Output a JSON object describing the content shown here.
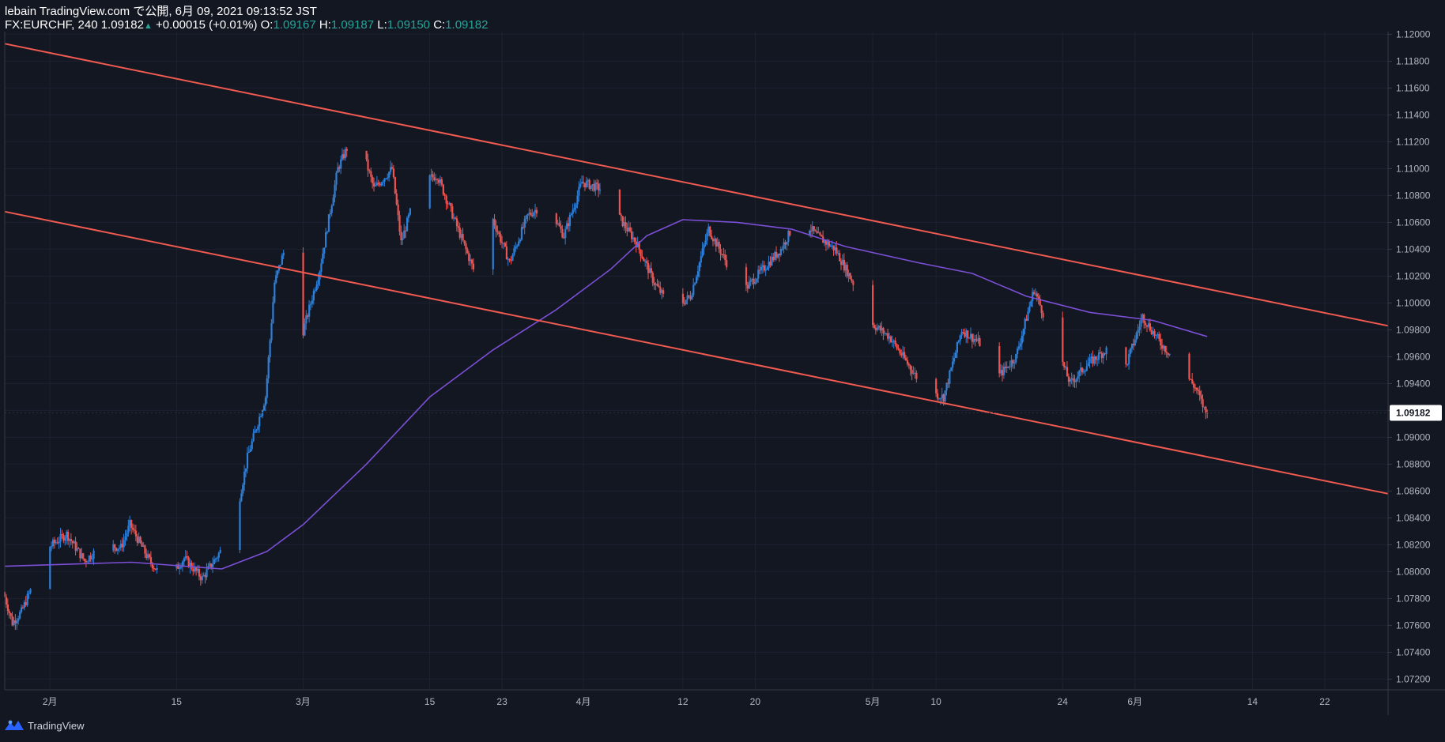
{
  "header": {
    "line1": "lebain TradingView.com で公開, 6月 09, 2021 09:13:52 JST",
    "symbol": "FX:EURCHF, 240",
    "last": "1.09182",
    "arrow": "▲",
    "change": "+0.00015 (+0.01%)",
    "o_label": "O:",
    "o_value": "1.09167",
    "h_label": "H:",
    "h_value": "1.09187",
    "l_label": "L:",
    "l_value": "1.09150",
    "c_label": "C:",
    "c_value": "1.09182"
  },
  "footer": {
    "brand": "TradingView",
    "logo_icon": "tradingview-logo-icon"
  },
  "colors": {
    "background": "#131722",
    "up": "#2f7fd6",
    "down": "#ef5350",
    "channel": "#f05a50",
    "ma": "#7b4fd6",
    "axis_text": "#b2b5be",
    "grid": "#1e2230",
    "last_price_label_bg": "#ffffff",
    "last_price_label_text": "#131722"
  },
  "chart_data": {
    "type": "candlestick",
    "title": "",
    "symbol": "FX:EURCHF",
    "interval": "240",
    "grid": true,
    "x_tick_labels": [
      {
        "label": "2月",
        "date": "2021-02-01"
      },
      {
        "label": "15",
        "date": "2021-02-15"
      },
      {
        "label": "3月",
        "date": "2021-03-01"
      },
      {
        "label": "15",
        "date": "2021-03-15"
      },
      {
        "label": "23",
        "date": "2021-03-23"
      },
      {
        "label": "4月",
        "date": "2021-04-01"
      },
      {
        "label": "12",
        "date": "2021-04-12"
      },
      {
        "label": "20",
        "date": "2021-04-20"
      },
      {
        "label": "5月",
        "date": "2021-05-03"
      },
      {
        "label": "10",
        "date": "2021-05-10"
      },
      {
        "label": "24",
        "date": "2021-05-24"
      },
      {
        "label": "6月",
        "date": "2021-06-01"
      },
      {
        "label": "14",
        "date": "2021-06-14"
      },
      {
        "label": "22",
        "date": "2021-06-22"
      }
    ],
    "y_tick_labels": [
      "1.12000",
      "1.11800",
      "1.11600",
      "1.11400",
      "1.11200",
      "1.11000",
      "1.10800",
      "1.10600",
      "1.10400",
      "1.10200",
      "1.10000",
      "1.09800",
      "1.09600",
      "1.09400",
      "1.09200",
      "1.09000",
      "1.08800",
      "1.08600",
      "1.08400",
      "1.08200",
      "1.08000",
      "1.07800",
      "1.07600",
      "1.07400",
      "1.07200"
    ],
    "ylim": [
      1.0712,
      1.1202
    ],
    "xlim": [
      "2021-01-27",
      "2021-06-29"
    ],
    "last_price": "1.09182",
    "price_path": [
      [
        "2021-01-27",
        1.0785
      ],
      [
        "2021-01-28",
        1.0762
      ],
      [
        "2021-01-29",
        1.077
      ],
      [
        "2021-02-01",
        1.0818
      ],
      [
        "2021-02-03",
        1.0828
      ],
      [
        "2021-02-05",
        1.0808
      ],
      [
        "2021-02-07",
        1.082
      ],
      [
        "2021-02-09",
        1.0818
      ],
      [
        "2021-02-10",
        1.0835
      ],
      [
        "2021-02-12",
        1.081
      ],
      [
        "2021-02-14",
        1.0792
      ],
      [
        "2021-02-16",
        1.081
      ],
      [
        "2021-02-18",
        1.0795
      ],
      [
        "2021-02-20",
        1.0815
      ],
      [
        "2021-02-22",
        1.085
      ],
      [
        "2021-02-23",
        1.0885
      ],
      [
        "2021-02-25",
        1.093
      ],
      [
        "2021-02-26",
        1.1015
      ],
      [
        "2021-02-28",
        1.106
      ],
      [
        "2021-03-01",
        1.0975
      ],
      [
        "2021-03-03",
        1.1025
      ],
      [
        "2021-03-05",
        1.11
      ],
      [
        "2021-03-07",
        1.113
      ],
      [
        "2021-03-09",
        1.1085
      ],
      [
        "2021-03-11",
        1.11
      ],
      [
        "2021-03-12",
        1.1045
      ],
      [
        "2021-03-14",
        1.109
      ],
      [
        "2021-03-16",
        1.1095
      ],
      [
        "2021-03-18",
        1.106
      ],
      [
        "2021-03-20",
        1.1025
      ],
      [
        "2021-03-22",
        1.1065
      ],
      [
        "2021-03-24",
        1.103
      ],
      [
        "2021-03-26",
        1.1065
      ],
      [
        "2021-03-28",
        1.1075
      ],
      [
        "2021-03-30",
        1.105
      ],
      [
        "2021-04-01",
        1.109
      ],
      [
        "2021-04-03",
        1.1085
      ],
      [
        "2021-04-05",
        1.1065
      ],
      [
        "2021-04-07",
        1.1045
      ],
      [
        "2021-04-09",
        1.1015
      ],
      [
        "2021-04-11",
        1.0995
      ],
      [
        "2021-04-13",
        1.1005
      ],
      [
        "2021-04-15",
        1.1055
      ],
      [
        "2021-04-17",
        1.103
      ],
      [
        "2021-04-19",
        1.101
      ],
      [
        "2021-04-21",
        1.1025
      ],
      [
        "2021-04-23",
        1.104
      ],
      [
        "2021-04-25",
        1.1065
      ],
      [
        "2021-04-27",
        1.105
      ],
      [
        "2021-04-29",
        1.104
      ],
      [
        "2021-05-01",
        1.1015
      ],
      [
        "2021-05-03",
        1.0985
      ],
      [
        "2021-05-05",
        1.0975
      ],
      [
        "2021-05-07",
        1.0955
      ],
      [
        "2021-05-09",
        1.0935
      ],
      [
        "2021-05-11",
        1.093
      ],
      [
        "2021-05-13",
        1.098
      ],
      [
        "2021-05-15",
        1.097
      ],
      [
        "2021-05-17",
        1.0945
      ],
      [
        "2021-05-19",
        1.096
      ],
      [
        "2021-05-21",
        1.101
      ],
      [
        "2021-05-23",
        1.0975
      ],
      [
        "2021-05-25",
        1.094
      ],
      [
        "2021-05-27",
        1.0955
      ],
      [
        "2021-05-29",
        1.0965
      ],
      [
        "2021-05-31",
        1.095
      ],
      [
        "2021-06-02",
        1.099
      ],
      [
        "2021-06-04",
        1.097
      ],
      [
        "2021-06-06",
        1.0955
      ],
      [
        "2021-06-08",
        1.0935
      ],
      [
        "2021-06-09",
        1.0918
      ]
    ],
    "series": [
      {
        "name": "",
        "type": "moving_average",
        "points": [
          [
            "2021-01-27",
            1.0804
          ],
          [
            "2021-02-10",
            1.0807
          ],
          [
            "2021-02-20",
            1.0802
          ],
          [
            "2021-02-25",
            1.0815
          ],
          [
            "2021-03-01",
            1.0835
          ],
          [
            "2021-03-08",
            1.088
          ],
          [
            "2021-03-15",
            1.093
          ],
          [
            "2021-03-22",
            1.0965
          ],
          [
            "2021-03-29",
            1.0995
          ],
          [
            "2021-04-04",
            1.1025
          ],
          [
            "2021-04-08",
            1.105
          ],
          [
            "2021-04-12",
            1.1062
          ],
          [
            "2021-04-18",
            1.106
          ],
          [
            "2021-04-24",
            1.1055
          ],
          [
            "2021-04-30",
            1.1042
          ],
          [
            "2021-05-08",
            1.103
          ],
          [
            "2021-05-14",
            1.1022
          ],
          [
            "2021-05-20",
            1.1005
          ],
          [
            "2021-05-27",
            1.0993
          ],
          [
            "2021-06-03",
            1.0987
          ],
          [
            "2021-06-09",
            1.0975
          ]
        ]
      },
      {
        "name": "",
        "type": "trendline",
        "points": [
          [
            "2021-01-27",
            1.1193
          ],
          [
            "2021-06-29",
            1.0983
          ]
        ]
      },
      {
        "name": "",
        "type": "trendline",
        "points": [
          [
            "2021-01-27",
            1.1068
          ],
          [
            "2021-06-29",
            1.0858
          ]
        ]
      }
    ]
  }
}
